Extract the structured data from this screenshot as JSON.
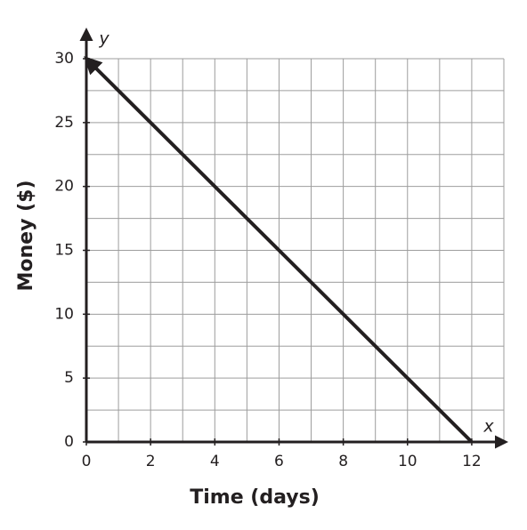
{
  "chart_data": {
    "type": "line",
    "xlabel": "Time (days)",
    "ylabel": "Money ($)",
    "x_axis_name": "x",
    "y_axis_name": "y",
    "x": [
      0,
      12
    ],
    "series": [
      {
        "color": "#231f20",
        "values": [
          30,
          0
        ]
      }
    ],
    "xlim": [
      0,
      13
    ],
    "ylim": [
      0,
      30
    ],
    "xticks": [
      0,
      2,
      4,
      6,
      8,
      10,
      12
    ],
    "yticks": [
      0,
      5,
      10,
      15,
      20,
      25,
      30
    ],
    "grid": true,
    "grid_step_x": 1,
    "grid_step_y": 2.5
  }
}
